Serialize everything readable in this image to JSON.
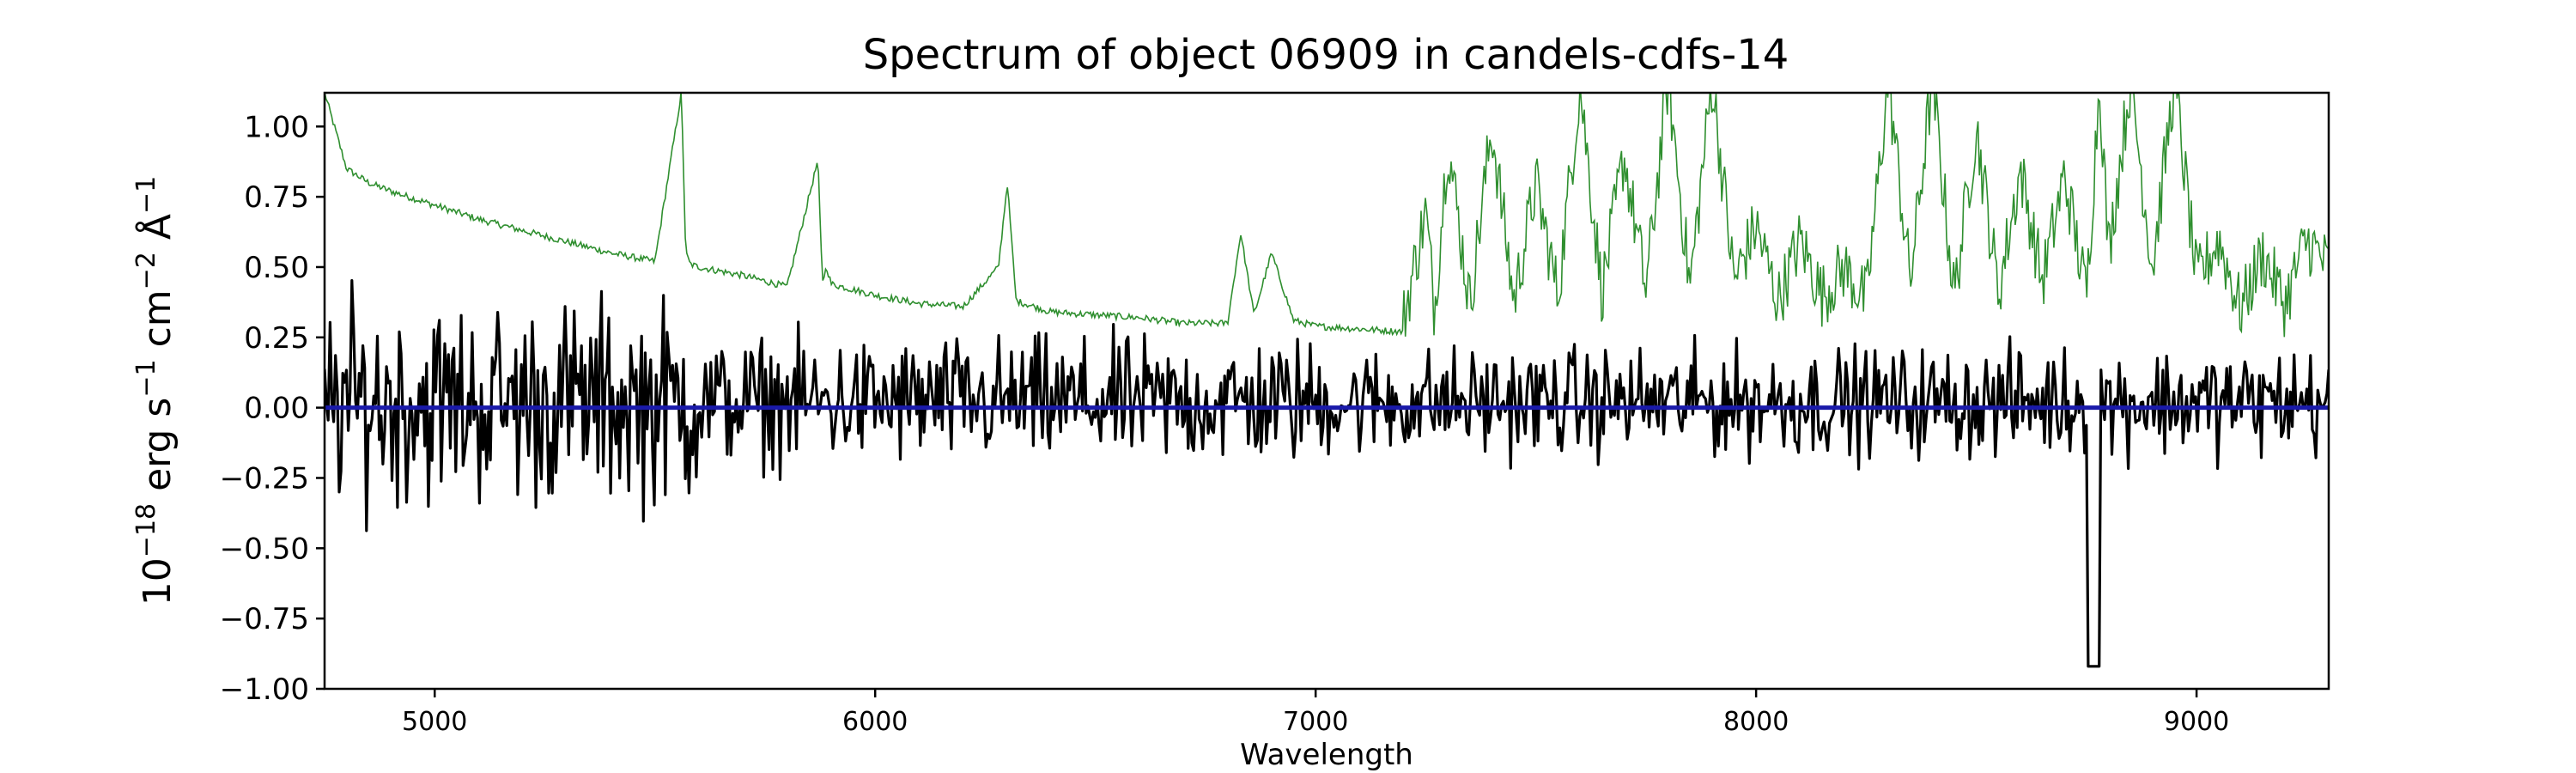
{
  "chart_data": {
    "type": "line",
    "title": "Spectrum of object 06909 in candels-cdfs-14",
    "xlabel": "Wavelength",
    "ylabel": {
      "base": "10",
      "exp": "−18",
      "unit1": " erg s",
      "exp1": "−1",
      "unit2": " cm",
      "exp2": "−2",
      "unit3": " Å",
      "exp3": "−1"
    },
    "xlim": [
      4750,
      9300
    ],
    "ylim": [
      -1.0,
      1.12
    ],
    "x_ticks": [
      5000,
      6000,
      7000,
      8000,
      9000
    ],
    "x_tick_labels": [
      "5000",
      "6000",
      "7000",
      "8000",
      "9000"
    ],
    "y_ticks": [
      -1.0,
      -0.75,
      -0.5,
      -0.25,
      0.0,
      0.25,
      0.5,
      0.75,
      1.0
    ],
    "y_tick_labels": [
      "−1.00",
      "−0.75",
      "−0.50",
      "−0.25",
      "0.00",
      "0.25",
      "0.50",
      "0.75",
      "1.00"
    ],
    "grid": false,
    "legend": "none",
    "series": [
      {
        "role": "error",
        "color": "#2f8f2f",
        "x": [
          4750,
          4800,
          4850,
          4900,
          5000,
          5100,
          5200,
          5300,
          5400,
          5500,
          5560,
          5570,
          5580,
          5600,
          5700,
          5800,
          5870,
          5880,
          5890,
          5900,
          6000,
          6100,
          6200,
          6280,
          6300,
          6320,
          6400,
          6500,
          6600,
          6700,
          6800,
          6830,
          6860,
          6900,
          6950,
          7000,
          7100,
          7200,
          7250,
          7270,
          7300,
          7350,
          7400,
          7450,
          7500,
          7550,
          7600,
          7650,
          7700,
          7750,
          7800,
          7850,
          7900,
          7950,
          8000,
          8050,
          8100,
          8150,
          8200,
          8250,
          8300,
          8350,
          8400,
          8450,
          8500,
          8550,
          8600,
          8650,
          8700,
          8750,
          8780,
          8800,
          8850,
          8900,
          8950,
          9000,
          9050,
          9100,
          9150,
          9200,
          9250,
          9300
        ],
        "y": [
          1.12,
          0.85,
          0.8,
          0.77,
          0.72,
          0.67,
          0.63,
          0.59,
          0.55,
          0.52,
          1.12,
          0.55,
          0.51,
          0.5,
          0.47,
          0.43,
          0.88,
          0.45,
          0.5,
          0.44,
          0.4,
          0.37,
          0.36,
          0.5,
          0.8,
          0.38,
          0.34,
          0.33,
          0.32,
          0.3,
          0.3,
          0.62,
          0.33,
          0.55,
          0.31,
          0.29,
          0.28,
          0.27,
          0.65,
          0.3,
          0.9,
          0.32,
          0.95,
          0.33,
          0.75,
          0.35,
          1.1,
          0.36,
          0.85,
          0.37,
          1.12,
          0.38,
          1.12,
          0.4,
          0.6,
          0.33,
          0.55,
          0.35,
          0.45,
          0.33,
          1.12,
          0.4,
          1.12,
          0.35,
          0.95,
          0.36,
          0.8,
          0.4,
          0.78,
          0.35,
          1.12,
          0.5,
          1.12,
          0.45,
          1.12,
          0.4,
          0.55,
          0.3,
          0.5,
          0.32,
          0.55,
          0.45
        ],
        "noise_amplitude": 0.06
      },
      {
        "role": "flux",
        "color": "#000000",
        "samples_range": [
          4750,
          9300
        ],
        "y_range": [
          -0.92,
          0.64
        ],
        "noise_amplitude": 0.22
      },
      {
        "role": "model",
        "color": "#1a1aaa",
        "x": [
          4750,
          9300
        ],
        "y": [
          0.0,
          0.0
        ]
      }
    ]
  }
}
